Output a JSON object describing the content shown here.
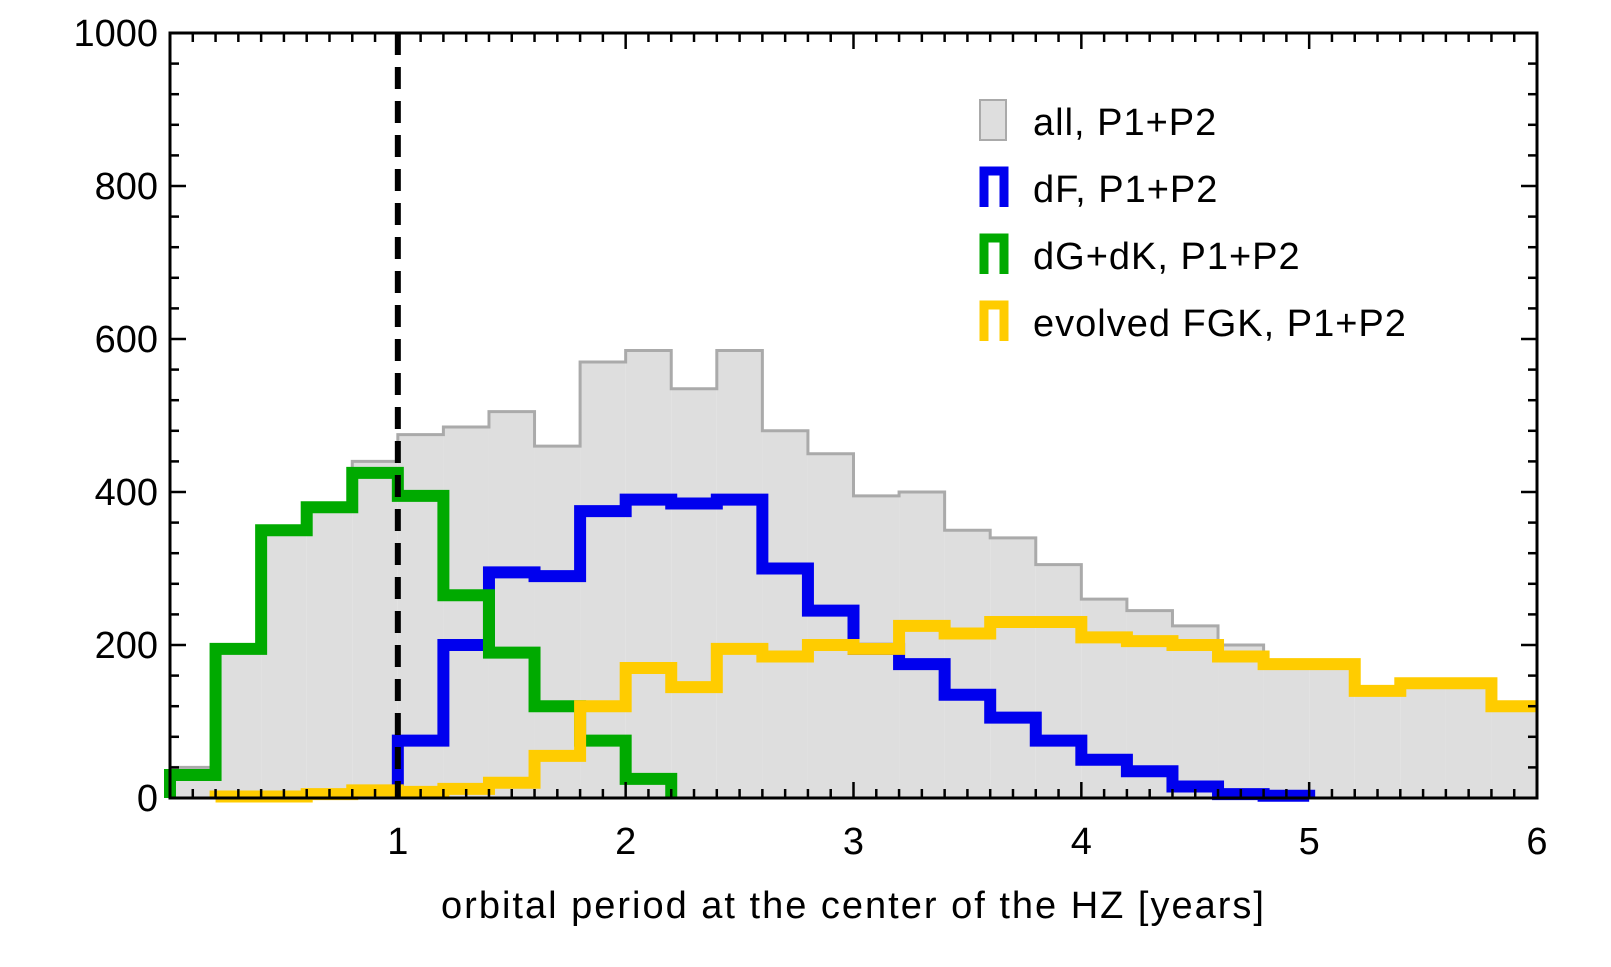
{
  "chart_data": {
    "type": "histogram",
    "xlabel": "orbital period at the center of the HZ [years]",
    "ylabel": "",
    "xlim": [
      0,
      6
    ],
    "ylim": [
      0,
      1000
    ],
    "x_ticks": [
      1,
      2,
      3,
      4,
      5,
      6
    ],
    "y_ticks": [
      0,
      200,
      400,
      600,
      800,
      1000
    ],
    "bin_edges": [
      0,
      0.2,
      0.4,
      0.6,
      0.8,
      1.0,
      1.2,
      1.4,
      1.6,
      1.8,
      2.0,
      2.2,
      2.4,
      2.6,
      2.8,
      3.0,
      3.2,
      3.4,
      3.6,
      3.8,
      4.0,
      4.2,
      4.4,
      4.6,
      4.8,
      5.0,
      5.2,
      5.4,
      5.6,
      5.8,
      6.0
    ],
    "vline": {
      "x": 1,
      "style": "dashed",
      "color": "#000000"
    },
    "legend_position": "top-right",
    "series": [
      {
        "name": "all, P1+P2",
        "style": "filled",
        "color": "#aaaaaa",
        "fill": "#dedede",
        "values": [
          40,
          200,
          350,
          380,
          440,
          475,
          485,
          505,
          460,
          570,
          585,
          535,
          585,
          480,
          450,
          395,
          400,
          350,
          340,
          305,
          260,
          245,
          225,
          200,
          175,
          170,
          140,
          145,
          150,
          125
        ]
      },
      {
        "name": "dF, P1+P2",
        "style": "step",
        "color": "#0000ee",
        "values": [
          null,
          null,
          null,
          null,
          null,
          75,
          200,
          295,
          290,
          375,
          390,
          385,
          390,
          300,
          245,
          195,
          175,
          135,
          105,
          75,
          50,
          35,
          15,
          5,
          3,
          null,
          null,
          null,
          null,
          null
        ]
      },
      {
        "name": "dG+dK, P1+P2",
        "style": "step",
        "color": "#00aa00",
        "values": [
          30,
          195,
          350,
          380,
          425,
          395,
          265,
          190,
          120,
          75,
          25,
          null,
          null,
          null,
          null,
          null,
          null,
          null,
          null,
          null,
          null,
          null,
          null,
          null,
          null,
          null,
          null,
          null,
          null,
          null
        ]
      },
      {
        "name": "evolved FGK, P1+P2",
        "style": "step",
        "color": "#ffcc00",
        "values": [
          null,
          2,
          2,
          5,
          10,
          8,
          12,
          20,
          55,
          120,
          170,
          145,
          195,
          185,
          200,
          195,
          225,
          215,
          230,
          230,
          210,
          205,
          200,
          185,
          175,
          175,
          140,
          150,
          150,
          120
        ]
      }
    ]
  }
}
